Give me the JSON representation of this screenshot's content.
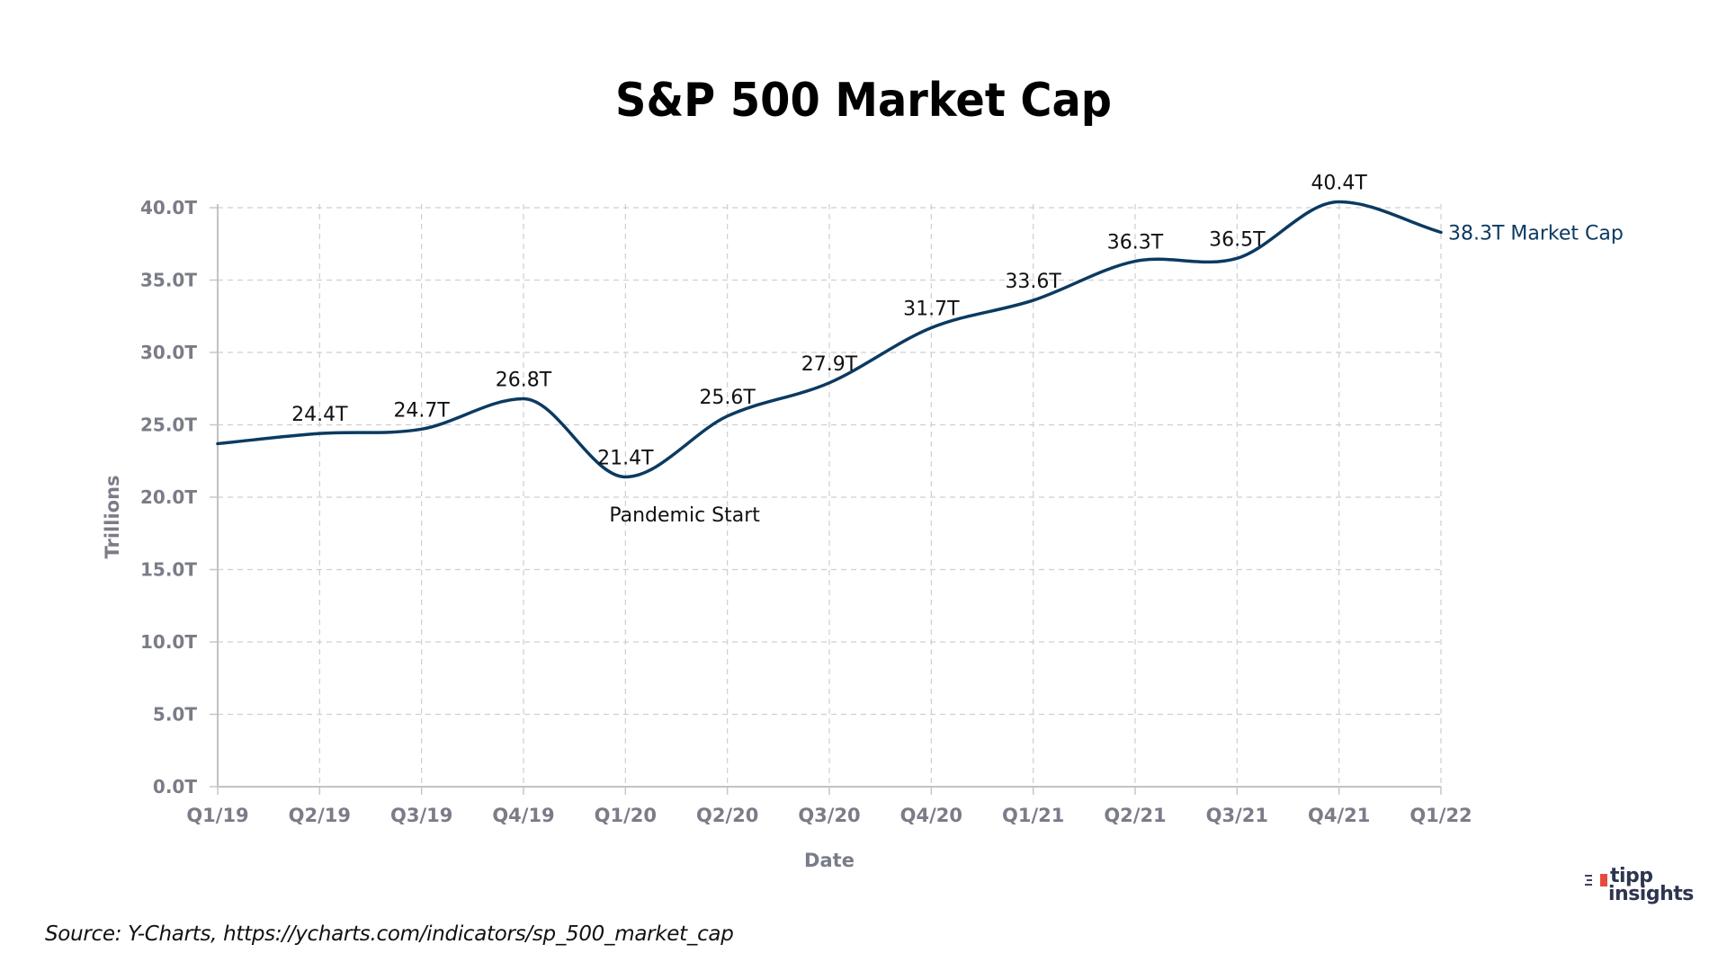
{
  "chart_data": {
    "type": "line",
    "title": "S&P 500 Market Cap",
    "xlabel": "Date",
    "ylabel": "Trillions",
    "categories": [
      "Q1/19",
      "Q2/19",
      "Q3/19",
      "Q4/19",
      "Q1/20",
      "Q2/20",
      "Q3/20",
      "Q4/20",
      "Q1/21",
      "Q2/21",
      "Q3/21",
      "Q4/21",
      "Q1/22"
    ],
    "series": [
      {
        "name": "Market Cap",
        "values": [
          23.7,
          24.4,
          24.7,
          26.8,
          21.4,
          25.6,
          27.9,
          31.7,
          33.6,
          36.3,
          36.5,
          40.4,
          38.3
        ],
        "data_labels": [
          "",
          "24.4T",
          "24.7T",
          "26.8T",
          "21.4T",
          "25.6T",
          "27.9T",
          "31.7T",
          "33.6T",
          "36.3T",
          "36.5T",
          "40.4T",
          ""
        ],
        "color": "#0b3a61"
      }
    ],
    "ylim": [
      0,
      40
    ],
    "yticks": [
      0,
      5,
      10,
      15,
      20,
      25,
      30,
      35,
      40
    ],
    "ytick_labels": [
      "0.0T",
      "5.0T",
      "10.0T",
      "15.0T",
      "20.0T",
      "25.0T",
      "30.0T",
      "35.0T",
      "40.0T"
    ],
    "grid": true,
    "grid_style": "dashed",
    "annotations": [
      {
        "text": "Pandemic Start",
        "x": "Q1/20",
        "y": 18.6
      },
      {
        "text": "38.3T Market Cap",
        "x": "Q1/22",
        "y": 38.3,
        "position": "end-of-line-right"
      }
    ],
    "legend": "none"
  },
  "footer": {
    "source": "Source: Y-Charts, https://ycharts.com/indicators/sp_500_market_cap"
  },
  "logo": {
    "line1": "tipp",
    "line2": "insights",
    "accent_color": "#e8493f",
    "text_color": "#2e3550"
  }
}
